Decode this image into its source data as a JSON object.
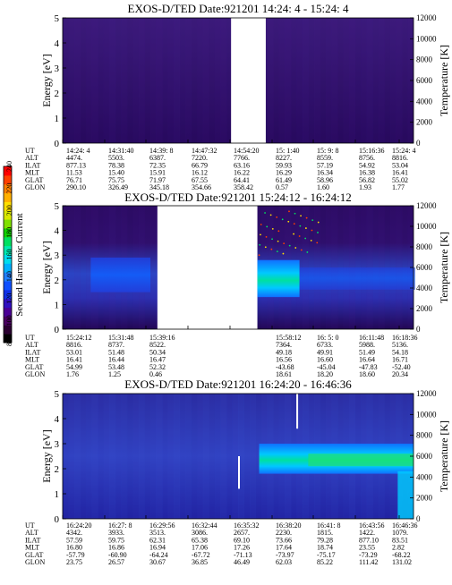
{
  "colorbar": {
    "label": "Second Harmonic Current",
    "ticks": [
      "80",
      "100",
      "120",
      "140",
      "160",
      "180",
      "200",
      "220",
      "240"
    ],
    "colors": [
      "#000000",
      "#2a0030",
      "#4a0060",
      "#4b0095",
      "#3010c0",
      "#1030e8",
      "#1050ff",
      "#2080ff",
      "#00b0ff",
      "#00ddee",
      "#00e8b0",
      "#00e060",
      "#10d000",
      "#80e000",
      "#d8e800",
      "#ffe000",
      "#ffb000",
      "#ff8000",
      "#ff4000",
      "#ff0000"
    ]
  },
  "axes": {
    "ylabel_left": "Energy [eV]",
    "ylabel_right": "Temperature [K]",
    "yticks_left": [
      "0",
      "1",
      "2",
      "3",
      "4",
      "5"
    ],
    "yticks_right": [
      "0",
      "2000",
      "4000",
      "6000",
      "8000",
      "10000",
      "12000"
    ]
  },
  "row_labels": [
    "UT",
    "ALT",
    "ILAT",
    "MLT",
    "GLAT",
    "GLON"
  ],
  "chart_data": [
    {
      "type": "heatmap",
      "title": "EXOS-D/TED   Date:921201   14:24: 4 - 15:24: 4",
      "ylabel": "Energy [eV]",
      "y2label": "Temperature [K]",
      "ylim": [
        0,
        5
      ],
      "y2lim": [
        0,
        12000
      ],
      "data_gaps": [
        [
          0.48,
          0.53
        ]
      ],
      "background_level": "dark purple",
      "table": {
        "UT": [
          "14:24: 4",
          "14:31:40",
          "14:39: 8",
          "14:47:32",
          "14:54:20",
          "15: 1:40",
          "15: 9: 8",
          "15:16:36",
          "15:24: 4"
        ],
        "ALT": [
          "4474.",
          "5503.",
          "6387.",
          "7220.",
          "7766.",
          "8227.",
          "8559.",
          "8756.",
          "8816."
        ],
        "ILAT": [
          "877.13",
          "78.38",
          "72.35",
          "66.79",
          "63.16",
          "59.93",
          "57.19",
          "54.92",
          "53.04"
        ],
        "MLT": [
          "11.53",
          "15.40",
          "15.91",
          "16.12",
          "16.22",
          "16.29",
          "16.34",
          "16.38",
          "16.41"
        ],
        "GLAT": [
          "76.71",
          "75.75",
          "71.97",
          "67.55",
          "64.41",
          "61.49",
          "58.96",
          "56.82",
          "55.02"
        ],
        "GLON": [
          "290.10",
          "326.49",
          "345.18",
          "354.66",
          "358.42",
          "0.57",
          "1.60",
          "1.93",
          "1.77"
        ]
      }
    },
    {
      "type": "heatmap",
      "title": "EXOS-D/TED   Date:921201   15:24:12 - 16:24:12",
      "ylabel": "Energy [eV]",
      "y2label": "Temperature [K]",
      "ylim": [
        0,
        5
      ],
      "y2lim": [
        0,
        12000
      ],
      "data_gaps": [
        [
          0.27,
          0.52
        ]
      ],
      "background_level": "dark purple",
      "table": {
        "UT": [
          "15:24:12",
          "15:31:48",
          "15:39:16",
          "",
          "",
          "15:58:12",
          "16: 5: 0",
          "16:11:48",
          "16:18:36"
        ],
        "ALT": [
          "8816.",
          "8737.",
          "8522.",
          "",
          "",
          "7364.",
          "6733.",
          "5988.",
          "5136."
        ],
        "ILAT": [
          "53.01",
          "51.48",
          "50.34",
          "",
          "",
          "49.18",
          "49.91",
          "51.49",
          "54.18"
        ],
        "MLT": [
          "16.41",
          "16.44",
          "16.47",
          "",
          "",
          "16.56",
          "16.60",
          "16.64",
          "16.71"
        ],
        "GLAT": [
          "54.99",
          "53.48",
          "52.32",
          "",
          "",
          "-43.68",
          "-45.04",
          "-47.83",
          "-52.40"
        ],
        "GLON": [
          "1.76",
          "1.25",
          "0.46",
          "",
          "",
          "18.61",
          "18.20",
          "18.60",
          "20.34"
        ]
      }
    },
    {
      "type": "heatmap",
      "title": "EXOS-D/TED   Date:921201   16:24:20 - 16:46:36",
      "ylabel": "Energy [eV]",
      "y2label": "Temperature [K]",
      "ylim": [
        0,
        5
      ],
      "y2lim": [
        0,
        12000
      ],
      "data_gaps": [],
      "background_level": "blue",
      "table": {
        "UT": [
          "16:24:20",
          "16:27: 8",
          "16:29:56",
          "16:32:44",
          "16:35:32",
          "16:38:20",
          "16:41: 8",
          "16:43:56",
          "16:46:36"
        ],
        "ALT": [
          "4342.",
          "3933.",
          "3513.",
          "3086.",
          "2657.",
          "2230.",
          "1815.",
          "1422.",
          "1079."
        ],
        "ILAT": [
          "57.59",
          "59.75",
          "62.31",
          "65.38",
          "69.10",
          "73.66",
          "79.28",
          "877.10",
          "83.51"
        ],
        "MLT": [
          "16.80",
          "16.86",
          "16.94",
          "17.06",
          "17.26",
          "17.64",
          "18.74",
          "23.55",
          "2.82"
        ],
        "GLAT": [
          "-57.79",
          "-60.90",
          "-64.24",
          "-67.72",
          "-71.13",
          "-73.97",
          "-75.17",
          "-73.29",
          "-68.22"
        ],
        "GLON": [
          "23.75",
          "26.57",
          "30.67",
          "36.85",
          "46.49",
          "62.03",
          "85.22",
          "111.42",
          "131.02"
        ]
      }
    }
  ]
}
